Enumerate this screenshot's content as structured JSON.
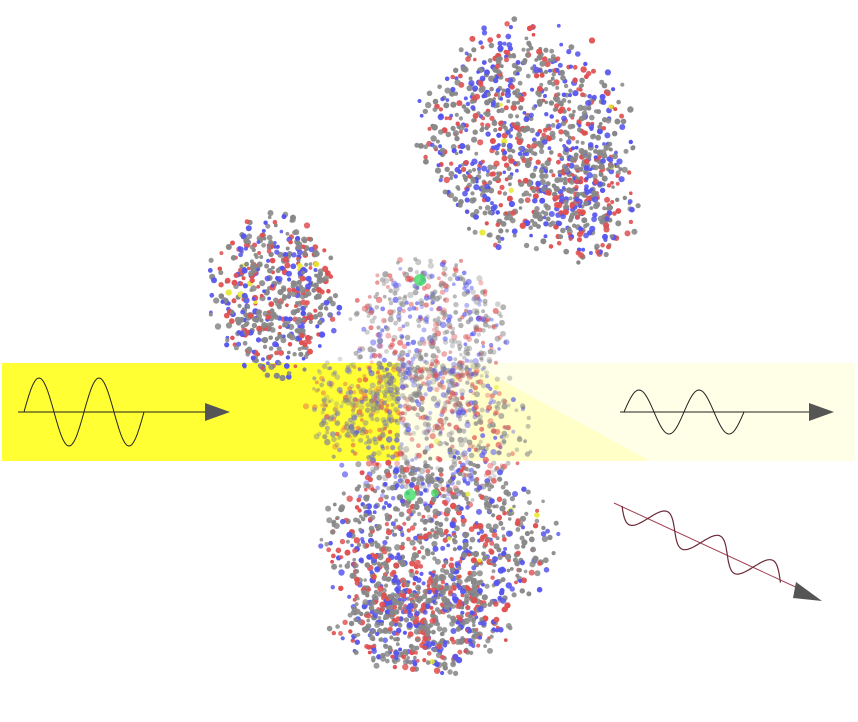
{
  "colors": {
    "background": "#ffffff",
    "beam_incident": "#ffff33",
    "beam_transmitted": "#ffffe8",
    "wave_line": "#222222",
    "scatter_wave": "#6b2a38",
    "scatter_axis": "#a04050",
    "arrowhead": "#555555",
    "atom_carbon": "#888888",
    "atom_oxygen": "#e05050",
    "atom_nitrogen": "#5555ee",
    "atom_sulfur": "#e8e830",
    "atom_metal": "#44dd66"
  },
  "scene": {
    "incident_wave": {
      "icon": "sine-wave-arrow-icon"
    },
    "transmitted_wave": {
      "icon": "sine-wave-arrow-icon"
    },
    "scattered_wave": {
      "icon": "diagonal-sine-wave-arrow-icon"
    },
    "molecule": {
      "icon": "protein-ball-and-stick-icon"
    }
  }
}
